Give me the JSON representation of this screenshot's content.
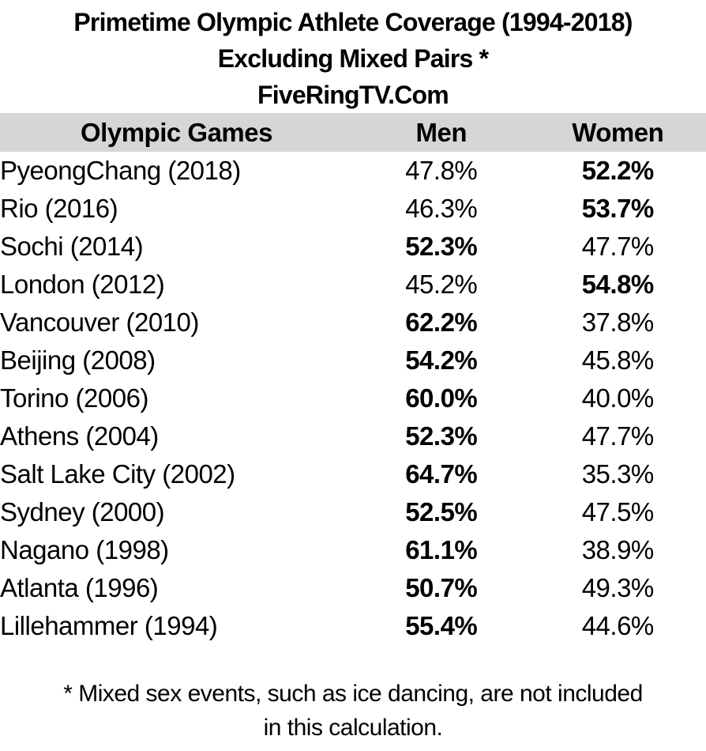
{
  "title": {
    "line1": "Primetime Olympic Athlete Coverage (1994-2018)",
    "line2": "Excluding Mixed Pairs *",
    "line3": "FiveRingTV.Com"
  },
  "table": {
    "header_bg": "#d6d6d6",
    "text_color": "#000000",
    "headers": [
      "Olympic Games",
      "Men",
      "Women"
    ],
    "rows": [
      {
        "game": "PyeongChang (2018)",
        "men": "47.8%",
        "women": "52.2%",
        "bold": "women"
      },
      {
        "game": "Rio (2016)",
        "men": "46.3%",
        "women": "53.7%",
        "bold": "women"
      },
      {
        "game": "Sochi (2014)",
        "men": "52.3%",
        "women": "47.7%",
        "bold": "men"
      },
      {
        "game": "London (2012)",
        "men": "45.2%",
        "women": "54.8%",
        "bold": "women"
      },
      {
        "game": "Vancouver (2010)",
        "men": "62.2%",
        "women": "37.8%",
        "bold": "men"
      },
      {
        "game": "Beijing (2008)",
        "men": "54.2%",
        "women": "45.8%",
        "bold": "men"
      },
      {
        "game": "Torino (2006)",
        "men": "60.0%",
        "women": "40.0%",
        "bold": "men"
      },
      {
        "game": "Athens (2004)",
        "men": "52.3%",
        "women": "47.7%",
        "bold": "men"
      },
      {
        "game": "Salt Lake City (2002)",
        "men": "64.7%",
        "women": "35.3%",
        "bold": "men"
      },
      {
        "game": "Sydney (2000)",
        "men": "52.5%",
        "women": "47.5%",
        "bold": "men"
      },
      {
        "game": "Nagano (1998)",
        "men": "61.1%",
        "women": "38.9%",
        "bold": "men"
      },
      {
        "game": "Atlanta (1996)",
        "men": "50.7%",
        "women": "49.3%",
        "bold": "men"
      },
      {
        "game": "Lillehammer (1994)",
        "men": "55.4%",
        "women": "44.6%",
        "bold": "men"
      }
    ]
  },
  "footnote": {
    "line1": "* Mixed sex events, such as ice dancing, are not included",
    "line2": "in this calculation."
  },
  "chart_data": {
    "type": "table",
    "title": "Primetime Olympic Athlete Coverage (1994-2018) Excluding Mixed Pairs *",
    "subtitle": "FiveRingTV.Com",
    "categories": [
      "PyeongChang (2018)",
      "Rio (2016)",
      "Sochi (2014)",
      "London (2012)",
      "Vancouver (2010)",
      "Beijing (2008)",
      "Torino (2006)",
      "Athens (2004)",
      "Salt Lake City (2002)",
      "Sydney (2000)",
      "Nagano (1998)",
      "Atlanta (1996)",
      "Lillehammer (1994)"
    ],
    "series": [
      {
        "name": "Men",
        "values": [
          47.8,
          46.3,
          52.3,
          45.2,
          62.2,
          54.2,
          60.0,
          52.3,
          64.7,
          52.5,
          61.1,
          50.7,
          55.4
        ]
      },
      {
        "name": "Women",
        "values": [
          52.2,
          53.7,
          47.7,
          54.8,
          37.8,
          45.8,
          40.0,
          47.7,
          35.3,
          47.5,
          38.9,
          49.3,
          44.6
        ]
      }
    ],
    "units": "percent",
    "annotations": [
      "* Mixed sex events, such as ice dancing, are not included in this calculation."
    ]
  }
}
